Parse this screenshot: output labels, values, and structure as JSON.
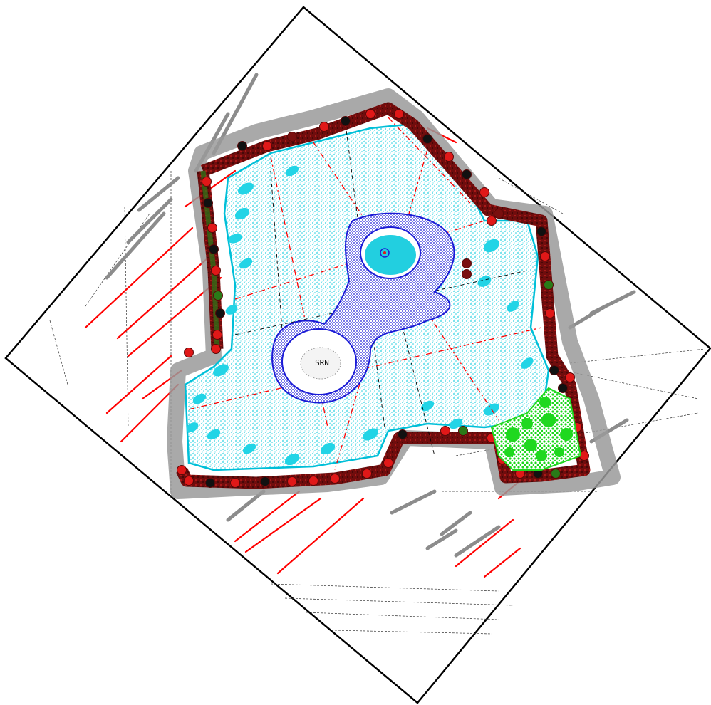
{
  "drawing": {
    "type": "cad-site-plan",
    "background": "#ffffff",
    "colors": {
      "frame": "#000000",
      "hardscape_fill": "#33dddd",
      "hardscape_edge": "#00bfd8",
      "water_rings": "#1a1ad6",
      "pond_water": "#22cfe0",
      "hedge_dark": "#7a0f0f",
      "shrub_red": "#e01818",
      "shrub_black": "#111111",
      "planting_green": "#1fd81f",
      "hedge_green": "#2a7a18",
      "gravel_grey": "#8c8c8c",
      "setout_red": "#ff0000",
      "hatch_grey": "#909090"
    },
    "labels": {
      "center_mark": "SRN"
    }
  }
}
